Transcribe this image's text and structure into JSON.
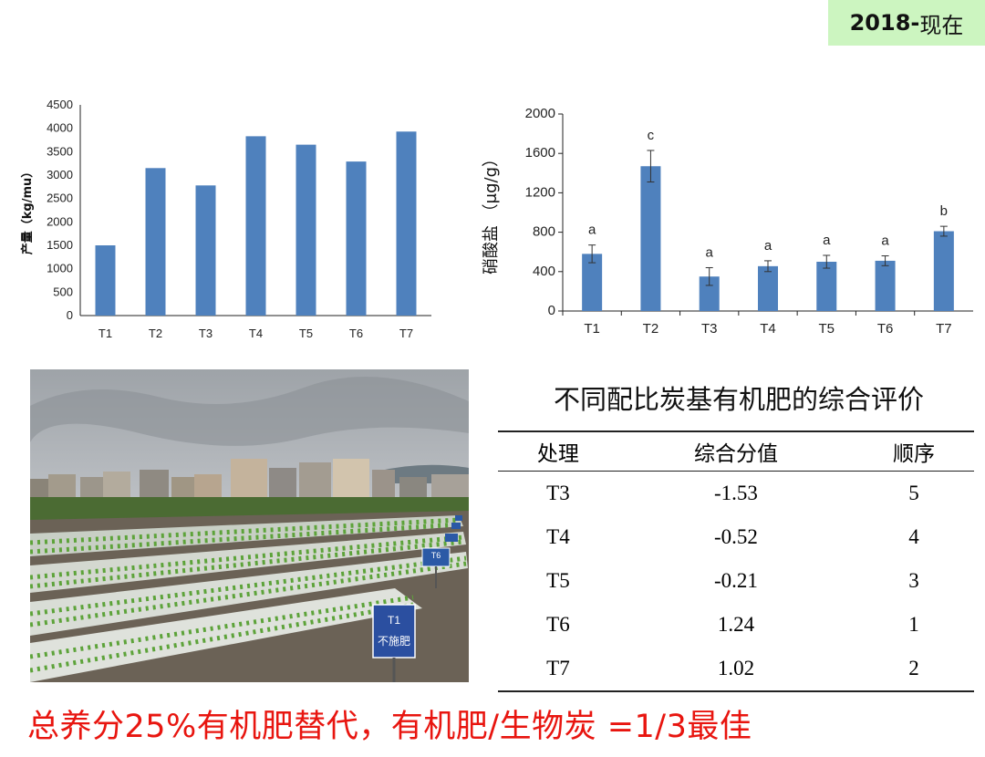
{
  "badge": {
    "year": "2018-",
    "text": "现在"
  },
  "chart_data": [
    {
      "type": "bar",
      "categories": [
        "T1",
        "T2",
        "T3",
        "T4",
        "T5",
        "T6",
        "T7"
      ],
      "values": [
        1500,
        3150,
        2780,
        3830,
        3650,
        3290,
        3930
      ],
      "ylabel": "产量（kg/mu）",
      "ylim": [
        0,
        4500
      ],
      "yticks": [
        0,
        500,
        1000,
        1500,
        2000,
        2500,
        3000,
        3500,
        4000,
        4500
      ],
      "grid": false,
      "color": "#4f81bd"
    },
    {
      "type": "bar",
      "categories": [
        "T1",
        "T2",
        "T3",
        "T4",
        "T5",
        "T6",
        "T7"
      ],
      "values": [
        580,
        1470,
        350,
        455,
        500,
        510,
        810
      ],
      "errors": [
        90,
        160,
        90,
        55,
        65,
        50,
        50
      ],
      "labels": [
        "a",
        "c",
        "a",
        "a",
        "a",
        "a",
        "b"
      ],
      "ylabel": "硝酸盐 （μg/g）",
      "ylim": [
        0,
        2000
      ],
      "yticks": [
        0,
        400,
        800,
        1200,
        1600,
        2000
      ],
      "grid": false,
      "color": "#4f81bd"
    }
  ],
  "photo": {
    "sign1": "T1",
    "sign1_sub": "不施肥",
    "sign2": "T6"
  },
  "table": {
    "title": "不同配比炭基有机肥的综合评价",
    "headers": [
      "处理",
      "综合分值",
      "顺序"
    ],
    "rows": [
      [
        "T3",
        "-1.53",
        "5"
      ],
      [
        "T4",
        "-0.52",
        "4"
      ],
      [
        "T5",
        "-0.21",
        "3"
      ],
      [
        "T6",
        "1.24",
        "1"
      ],
      [
        "T7",
        "1.02",
        "2"
      ]
    ]
  },
  "conclusion": "总养分25%有机肥替代，有机肥/生物炭 =1/3最佳"
}
